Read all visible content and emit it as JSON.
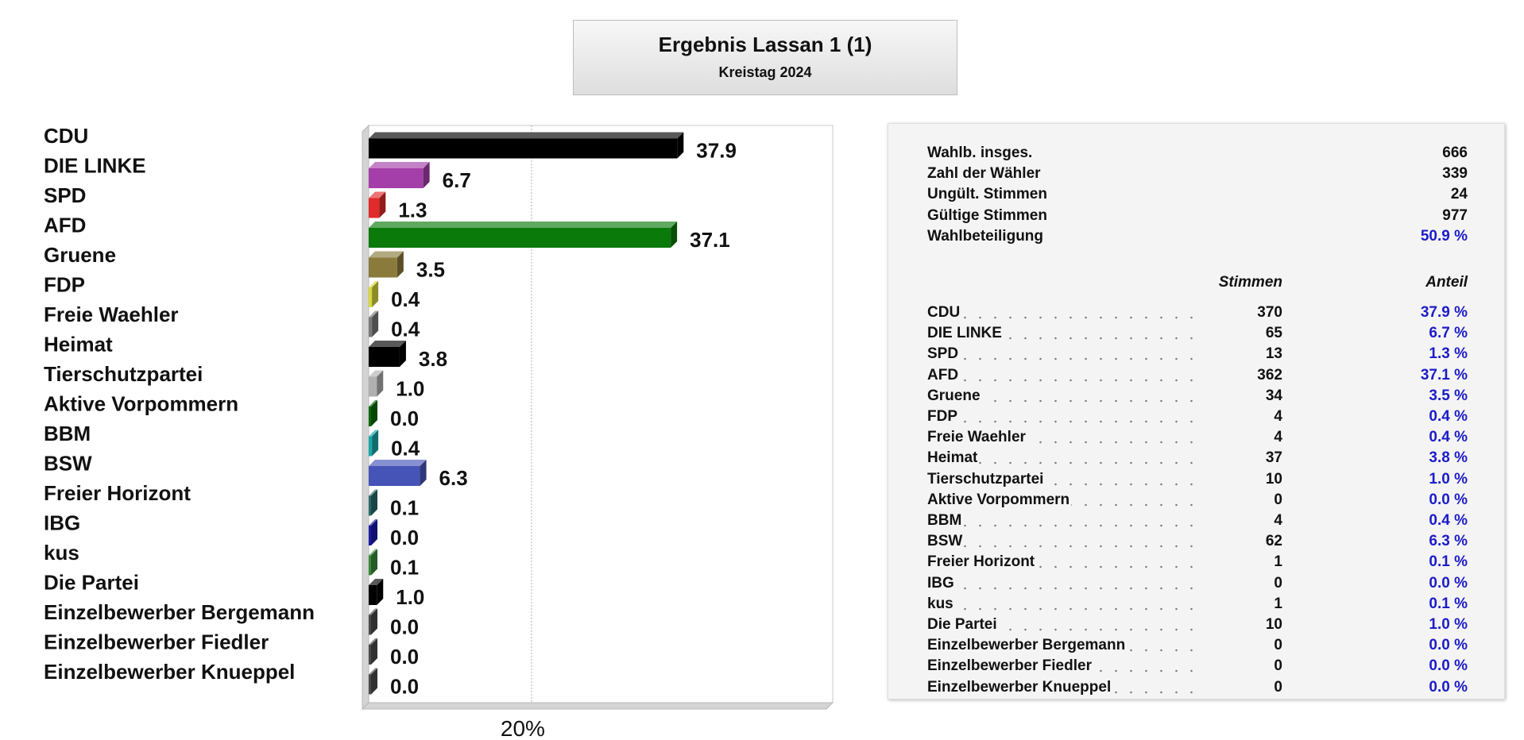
{
  "title": "Ergebnis Lassan 1 (1)",
  "subtitle": "Kreistag 2024",
  "chart_data": {
    "type": "bar",
    "orientation": "horizontal",
    "categories": [
      "CDU",
      "DIE LINKE",
      "SPD",
      "AFD",
      "Gruene",
      "FDP",
      "Freie Waehler",
      "Heimat",
      "Tierschutzpartei",
      "Aktive Vorpommern",
      "BBM",
      "BSW",
      "Freier Horizont",
      "IBG",
      "kus",
      "Die Partei",
      "Einzelbewerber Bergemann",
      "Einzelbewerber Fiedler",
      "Einzelbewerber Knueppel"
    ],
    "values": [
      37.9,
      6.7,
      1.3,
      37.1,
      3.5,
      0.4,
      0.4,
      3.8,
      1.0,
      0.0,
      0.4,
      6.3,
      0.1,
      0.0,
      0.1,
      1.0,
      0.0,
      0.0,
      0.0
    ],
    "value_labels": [
      "37.9",
      "6.7",
      "1.3",
      "37.1",
      "3.5",
      "0.4",
      "0.4",
      "3.8",
      "1.0",
      "0.0",
      "0.4",
      "6.3",
      "0.1",
      "0.0",
      "0.1",
      "1.0",
      "0.0",
      "0.0",
      "0.0"
    ],
    "colors": [
      "#000000",
      "#a43ea8",
      "#e12a2a",
      "#0a7a0a",
      "#8a7a3c",
      "#d8d83a",
      "#7a7a7a",
      "#000000",
      "#b0b0b0",
      "#0a6a0a",
      "#1aa8a8",
      "#4654b8",
      "#2a6a6a",
      "#1a1aa8",
      "#3a8a3a",
      "#000000",
      "#4a4a4a",
      "#4a4a4a",
      "#4a4a4a"
    ],
    "xlim": [
      0,
      57
    ],
    "gridline": 20,
    "gridline_label": "20%",
    "grid": true
  },
  "summary": [
    {
      "label": "Wahlb. insges.",
      "value": "666"
    },
    {
      "label": "Zahl der Wähler",
      "value": "339"
    },
    {
      "label": "Ungült. Stimmen",
      "value": "24"
    },
    {
      "label": "Gültige Stimmen",
      "value": "977"
    },
    {
      "label": "Wahlbeteiligung",
      "value": "50.9 %",
      "highlight": true
    }
  ],
  "table_headers": {
    "votes": "Stimmen",
    "share": "Anteil"
  },
  "table_rows": [
    {
      "party": "CDU",
      "votes": "370",
      "share": "37.9 %"
    },
    {
      "party": "DIE LINKE",
      "votes": "65",
      "share": "6.7 %"
    },
    {
      "party": "SPD",
      "votes": "13",
      "share": "1.3 %"
    },
    {
      "party": "AFD",
      "votes": "362",
      "share": "37.1 %"
    },
    {
      "party": "Gruene",
      "votes": "34",
      "share": "3.5 %"
    },
    {
      "party": "FDP",
      "votes": "4",
      "share": "0.4 %"
    },
    {
      "party": "Freie Waehler",
      "votes": "4",
      "share": "0.4 %"
    },
    {
      "party": "Heimat",
      "votes": "37",
      "share": "3.8 %"
    },
    {
      "party": "Tierschutzpartei",
      "votes": "10",
      "share": "1.0 %"
    },
    {
      "party": "Aktive Vorpommern",
      "votes": "0",
      "share": "0.0 %"
    },
    {
      "party": "BBM",
      "votes": "4",
      "share": "0.4 %"
    },
    {
      "party": "BSW",
      "votes": "62",
      "share": "6.3 %"
    },
    {
      "party": "Freier Horizont",
      "votes": "1",
      "share": "0.1 %"
    },
    {
      "party": "IBG",
      "votes": "0",
      "share": "0.0 %"
    },
    {
      "party": "kus",
      "votes": "1",
      "share": "0.1 %"
    },
    {
      "party": "Die Partei",
      "votes": "10",
      "share": "1.0 %"
    },
    {
      "party": "Einzelbewerber Bergemann",
      "votes": "0",
      "share": "0.0 %"
    },
    {
      "party": "Einzelbewerber Fiedler",
      "votes": "0",
      "share": "0.0 %"
    },
    {
      "party": "Einzelbewerber Knueppel",
      "votes": "0",
      "share": "0.0 %"
    }
  ]
}
